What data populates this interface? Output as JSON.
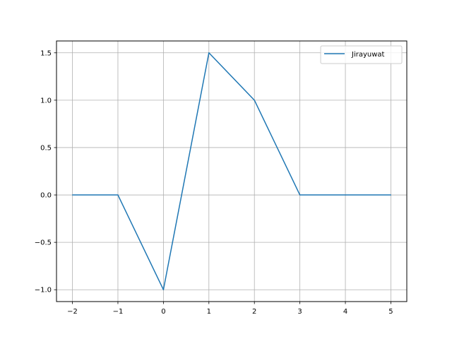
{
  "chart_data": {
    "type": "line",
    "title": "",
    "xlabel": "",
    "ylabel": "",
    "xlim": [
      -2.35,
      5.35
    ],
    "ylim": [
      -1.125,
      1.625
    ],
    "xticks": [
      -2,
      -1,
      0,
      1,
      2,
      3,
      4,
      5
    ],
    "xtick_labels": [
      "−2",
      "−1",
      "0",
      "1",
      "2",
      "3",
      "4",
      "5"
    ],
    "yticks": [
      -1.0,
      -0.5,
      0.0,
      0.5,
      1.0,
      1.5
    ],
    "ytick_labels": [
      "−1.0",
      "−0.5",
      "0.0",
      "0.5",
      "1.0",
      "1.5"
    ],
    "grid": true,
    "legend_position": "top-right",
    "series": [
      {
        "name": "Jirayuwat",
        "color": "#1f77b4",
        "x": [
          -2,
          -1,
          0,
          1,
          2,
          3,
          4,
          5
        ],
        "y": [
          0,
          0,
          -1,
          1.5,
          1,
          0,
          0,
          0
        ]
      }
    ]
  }
}
